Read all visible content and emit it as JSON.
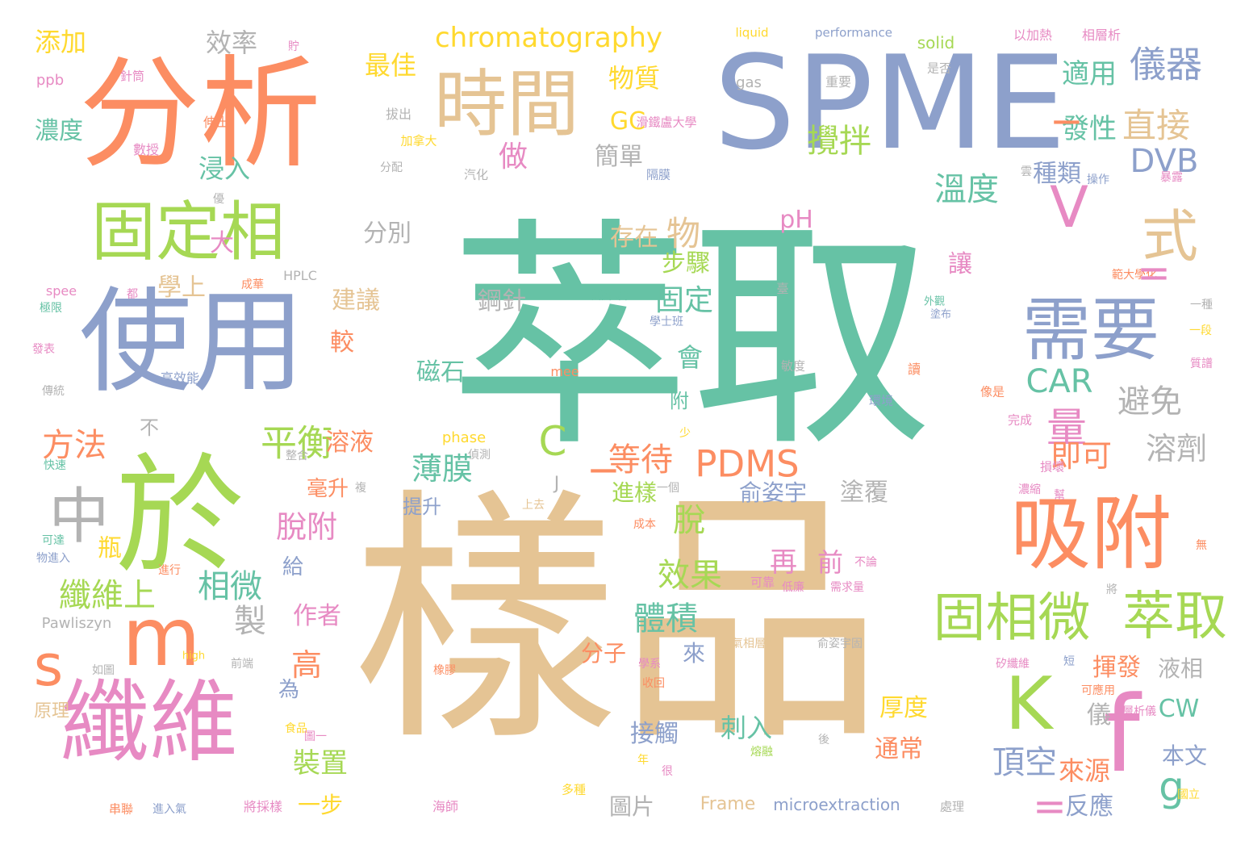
{
  "palette": {
    "teal": "#66c2a5",
    "orange": "#fc8d62",
    "blue": "#8da0cb",
    "pink": "#e78ac3",
    "green": "#a6d854",
    "yellow": "#ffd92f",
    "tan": "#e5c494",
    "gray": "#b3b3b3"
  },
  "words": [
    {
      "text": "萃取",
      "color": "#66c2a5"
    },
    {
      "text": "樣品",
      "color": "#e5c494"
    },
    {
      "text": "SPME",
      "color": "#8da0cb"
    },
    {
      "text": "分析",
      "color": "#fc8d62"
    },
    {
      "text": "使用",
      "color": "#8da0cb"
    },
    {
      "text": "於",
      "color": "#a6d854"
    },
    {
      "text": "纖維",
      "color": "#e78ac3"
    },
    {
      "text": "吸附",
      "color": "#fc8d62"
    },
    {
      "text": "固定相",
      "color": "#a6d854"
    },
    {
      "text": "時間",
      "color": "#e5c494"
    },
    {
      "text": "需要",
      "color": "#8da0cb"
    },
    {
      "text": "m",
      "color": "#fc8d62"
    },
    {
      "text": "s",
      "color": "#fc8d62"
    },
    {
      "text": "中",
      "color": "#b3b3b3"
    },
    {
      "text": "f",
      "color": "#e78ac3"
    },
    {
      "text": "K",
      "color": "#a6d854"
    },
    {
      "text": "V",
      "color": "#e78ac3"
    },
    {
      "text": "式",
      "color": "#e5c494"
    },
    {
      "text": "固相微",
      "color": "#a6d854"
    },
    {
      "text": "萃取",
      "color": "#a6d854"
    },
    {
      "text": "儀器",
      "color": "#8da0cb"
    },
    {
      "text": "適用",
      "color": "#66c2a5"
    },
    {
      "text": "發性",
      "color": "#66c2a5"
    },
    {
      "text": "直接",
      "color": "#e5c494"
    },
    {
      "text": "DVB",
      "color": "#8da0cb"
    },
    {
      "text": "溫度",
      "color": "#66c2a5"
    },
    {
      "text": "攪拌",
      "color": "#a6d854"
    },
    {
      "text": "chromatography",
      "color": "#ffd92f"
    },
    {
      "text": "PDMS",
      "color": "#fc8d62"
    },
    {
      "text": "CAR",
      "color": "#66c2a5"
    },
    {
      "text": "平衡",
      "color": "#a6d854"
    },
    {
      "text": "等待",
      "color": "#fc8d62"
    },
    {
      "text": "薄膜",
      "color": "#66c2a5"
    },
    {
      "text": "避免",
      "color": "#b3b3b3"
    },
    {
      "text": "溶劑",
      "color": "#b3b3b3"
    },
    {
      "text": "量",
      "color": "#e78ac3"
    },
    {
      "text": "即可",
      "color": "#fc8d62"
    },
    {
      "text": "效果",
      "color": "#a6d854"
    },
    {
      "text": "體積",
      "color": "#66c2a5"
    },
    {
      "text": "脫附",
      "color": "#e78ac3"
    },
    {
      "text": "纖維上",
      "color": "#a6d854"
    },
    {
      "text": "相微",
      "color": "#66c2a5"
    },
    {
      "text": "方法",
      "color": "#fc8d62"
    },
    {
      "text": "濃度",
      "color": "#66c2a5"
    },
    {
      "text": "添加",
      "color": "#ffd92f"
    },
    {
      "text": "效率",
      "color": "#b3b3b3"
    },
    {
      "text": "最佳",
      "color": "#ffd92f"
    },
    {
      "text": "物質",
      "color": "#ffd92f"
    },
    {
      "text": "GC",
      "color": "#ffd92f"
    },
    {
      "text": "簡單",
      "color": "#b3b3b3"
    },
    {
      "text": "做",
      "color": "#e78ac3"
    },
    {
      "text": "浸入",
      "color": "#66c2a5"
    },
    {
      "text": "分別",
      "color": "#b3b3b3"
    },
    {
      "text": "存在",
      "color": "#e5c494"
    },
    {
      "text": "物",
      "color": "#e5c494"
    },
    {
      "text": "步驟",
      "color": "#a6d854"
    },
    {
      "text": "固定",
      "color": "#66c2a5"
    },
    {
      "text": "鋼針",
      "color": "#b3b3b3"
    },
    {
      "text": "建議",
      "color": "#e5c494"
    },
    {
      "text": "學上",
      "color": "#e5c494"
    },
    {
      "text": "大",
      "color": "#e78ac3"
    },
    {
      "text": "磁石",
      "color": "#66c2a5"
    },
    {
      "text": "會",
      "color": "#66c2a5"
    },
    {
      "text": "附",
      "color": "#66c2a5"
    },
    {
      "text": "pH",
      "color": "#e78ac3"
    },
    {
      "text": "種類",
      "color": "#8da0cb"
    },
    {
      "text": "讓",
      "color": "#e78ac3"
    },
    {
      "text": "較",
      "color": "#fc8d62"
    },
    {
      "text": "溶液",
      "color": "#fc8d62"
    },
    {
      "text": "不",
      "color": "#b3b3b3"
    },
    {
      "text": "毫升",
      "color": "#fc8d62"
    },
    {
      "text": "提升",
      "color": "#8da0cb"
    },
    {
      "text": "俞姿宇",
      "color": "#8da0cb"
    },
    {
      "text": "進樣",
      "color": "#a6d854"
    },
    {
      "text": "塗覆",
      "color": "#b3b3b3"
    },
    {
      "text": "脫",
      "color": "#a6d854"
    },
    {
      "text": "再",
      "color": "#e78ac3"
    },
    {
      "text": "前",
      "color": "#e78ac3"
    },
    {
      "text": "瓶",
      "color": "#ffd92f"
    },
    {
      "text": "給",
      "color": "#8da0cb"
    },
    {
      "text": "製",
      "color": "#b3b3b3"
    },
    {
      "text": "作者",
      "color": "#e78ac3"
    },
    {
      "text": "高",
      "color": "#fc8d62"
    },
    {
      "text": "為",
      "color": "#8da0cb"
    },
    {
      "text": "裝置",
      "color": "#a6d854"
    },
    {
      "text": "一步",
      "color": "#ffd92f"
    },
    {
      "text": "來",
      "color": "#8da0cb"
    },
    {
      "text": "分子",
      "color": "#fc8d62"
    },
    {
      "text": "刺入",
      "color": "#66c2a5"
    },
    {
      "text": "接觸",
      "color": "#8da0cb"
    },
    {
      "text": "圖片",
      "color": "#b3b3b3"
    },
    {
      "text": "厚度",
      "color": "#ffd92f"
    },
    {
      "text": "通常",
      "color": "#fc8d62"
    },
    {
      "text": "頂空",
      "color": "#8da0cb"
    },
    {
      "text": "來源",
      "color": "#fc8d62"
    },
    {
      "text": "反應",
      "color": "#8da0cb"
    },
    {
      "text": "揮發",
      "color": "#fc8d62"
    },
    {
      "text": "液相",
      "color": "#b3b3b3"
    },
    {
      "text": "儀",
      "color": "#b3b3b3"
    },
    {
      "text": "g",
      "color": "#66c2a5"
    },
    {
      "text": "CW",
      "color": "#66c2a5"
    },
    {
      "text": "本文",
      "color": "#8da0cb"
    },
    {
      "text": "原理",
      "color": "#e5c494"
    },
    {
      "text": "C",
      "color": "#a6d854"
    },
    {
      "text": "Frame",
      "color": "#e5c494"
    },
    {
      "text": "microextraction",
      "color": "#8da0cb"
    },
    {
      "text": "performance",
      "color": "#8da0cb"
    },
    {
      "text": "liquid",
      "color": "#ffd92f"
    },
    {
      "text": "solid",
      "color": "#a6d854"
    },
    {
      "text": "gas",
      "color": "#b3b3b3"
    },
    {
      "text": "phase",
      "color": "#ffd92f"
    },
    {
      "text": "mee",
      "color": "#fc8d62"
    },
    {
      "text": "spee",
      "color": "#e78ac3"
    },
    {
      "text": "ppb",
      "color": "#e78ac3"
    },
    {
      "text": "high",
      "color": "#ffd92f"
    },
    {
      "text": "HPLC",
      "color": "#b3b3b3"
    },
    {
      "text": "Pawliszyn",
      "color": "#b3b3b3"
    },
    {
      "text": "J",
      "color": "#b3b3b3"
    },
    {
      "text": "以加熱",
      "color": "#e78ac3"
    },
    {
      "text": "相層析",
      "color": "#e78ac3"
    },
    {
      "text": "是否",
      "color": "#b3b3b3"
    },
    {
      "text": "重要",
      "color": "#b3b3b3"
    },
    {
      "text": "針筒",
      "color": "#e78ac3"
    },
    {
      "text": "伸出",
      "color": "#fc8d62"
    },
    {
      "text": "拔出",
      "color": "#b3b3b3"
    },
    {
      "text": "加拿大",
      "color": "#ffd92f"
    },
    {
      "text": "數授",
      "color": "#e78ac3"
    },
    {
      "text": "分配",
      "color": "#b3b3b3"
    },
    {
      "text": "汽化",
      "color": "#b3b3b3"
    },
    {
      "text": "隔膜",
      "color": "#8da0cb"
    },
    {
      "text": "操作",
      "color": "#8da0cb"
    },
    {
      "text": "暴露",
      "color": "#e78ac3"
    },
    {
      "text": "滑鐵盧大學",
      "color": "#e78ac3"
    },
    {
      "text": "範大學化",
      "color": "#fc8d62"
    },
    {
      "text": "外觀",
      "color": "#66c2a5"
    },
    {
      "text": "塗布",
      "color": "#8da0cb"
    },
    {
      "text": "一種",
      "color": "#b3b3b3"
    },
    {
      "text": "一段",
      "color": "#ffd92f"
    },
    {
      "text": "質譜",
      "color": "#e78ac3"
    },
    {
      "text": "纖維若",
      "color": "#66c2a5"
    },
    {
      "text": "學士班",
      "color": "#8da0cb"
    },
    {
      "text": "敏度",
      "color": "#b3b3b3"
    },
    {
      "text": "環境",
      "color": "#8da0cb"
    },
    {
      "text": "像是",
      "color": "#fc8d62"
    },
    {
      "text": "完成",
      "color": "#e78ac3"
    },
    {
      "text": "損壞",
      "color": "#e78ac3"
    },
    {
      "text": "濃縮",
      "color": "#e78ac3"
    },
    {
      "text": "上去",
      "color": "#e5c494"
    },
    {
      "text": "成本",
      "color": "#fc8d62"
    },
    {
      "text": "不論",
      "color": "#e78ac3"
    },
    {
      "text": "低廉",
      "color": "#e78ac3"
    },
    {
      "text": "需求量",
      "color": "#e78ac3"
    },
    {
      "text": "氣相層析",
      "color": "#e5c494"
    },
    {
      "text": "俞姿宇固",
      "color": "#b3b3b3"
    },
    {
      "text": "矽纖維",
      "color": "#e78ac3"
    },
    {
      "text": "可應用",
      "color": "#fc8d62"
    },
    {
      "text": "層析儀",
      "color": "#e78ac3"
    },
    {
      "text": "國立",
      "color": "#ffd92f"
    },
    {
      "text": "處理",
      "color": "#b3b3b3"
    },
    {
      "text": "熔融",
      "color": "#a6d854"
    },
    {
      "text": "收回",
      "color": "#fc8d62"
    },
    {
      "text": "學系",
      "color": "#e78ac3"
    },
    {
      "text": "食品",
      "color": "#ffd92f"
    },
    {
      "text": "圖一",
      "color": "#e78ac3"
    },
    {
      "text": "很",
      "color": "#e78ac3"
    },
    {
      "text": "年",
      "color": "#ffd92f"
    },
    {
      "text": "多種",
      "color": "#ffd92f"
    },
    {
      "text": "海師",
      "color": "#e78ac3"
    },
    {
      "text": "將採樣",
      "color": "#e78ac3"
    },
    {
      "text": "進入氣",
      "color": "#8da0cb"
    },
    {
      "text": "串聯",
      "color": "#fc8d62"
    },
    {
      "text": "如圖",
      "color": "#b3b3b3"
    },
    {
      "text": "前端",
      "color": "#b3b3b3"
    },
    {
      "text": "橡膠",
      "color": "#fc8d62"
    },
    {
      "text": "進行",
      "color": "#fc8d62"
    },
    {
      "text": "可達",
      "color": "#66c2a5"
    },
    {
      "text": "物進入",
      "color": "#8da0cb"
    },
    {
      "text": "快速",
      "color": "#66c2a5"
    },
    {
      "text": "傳統",
      "color": "#b3b3b3"
    },
    {
      "text": "發表",
      "color": "#e78ac3"
    },
    {
      "text": "高效能",
      "color": "#8da0cb"
    },
    {
      "text": "極限",
      "color": "#66c2a5"
    },
    {
      "text": "都",
      "color": "#e78ac3"
    },
    {
      "text": "成華",
      "color": "#fc8d62"
    },
    {
      "text": "優",
      "color": "#b3b3b3"
    },
    {
      "text": "貯",
      "color": "#e78ac3"
    },
    {
      "text": "偵測",
      "color": "#b3b3b3"
    },
    {
      "text": "整合",
      "color": "#b3b3b3"
    },
    {
      "text": "少",
      "color": "#ffd92f"
    },
    {
      "text": "複",
      "color": "#b3b3b3"
    },
    {
      "text": "一個",
      "color": "#b3b3b3"
    },
    {
      "text": "可靠",
      "color": "#e78ac3"
    },
    {
      "text": "後",
      "color": "#b3b3b3"
    },
    {
      "text": "短",
      "color": "#8da0cb"
    },
    {
      "text": "將",
      "color": "#b3b3b3"
    },
    {
      "text": "無",
      "color": "#fc8d62"
    },
    {
      "text": "幫",
      "color": "#e78ac3"
    },
    {
      "text": "讀",
      "color": "#fc8d62"
    },
    {
      "text": "臺",
      "color": "#b3b3b3"
    },
    {
      "text": "雲",
      "color": "#b3b3b3"
    },
    {
      "text": "=",
      "color": "#e78ac3"
    },
    {
      "text": "=",
      "color": "#e78ac3"
    },
    {
      "text": "−",
      "color": "#fc8d62"
    },
    {
      "text": "−",
      "color": "#fc8d62"
    }
  ]
}
